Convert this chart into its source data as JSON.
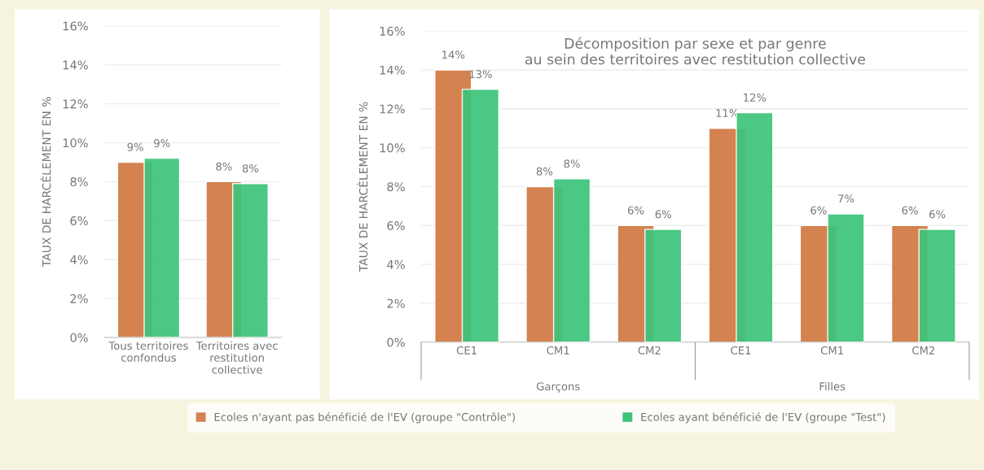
{
  "chart_data": [
    {
      "type": "bar",
      "ylabel": "TAUX DE HARCÈLEMENT EN %",
      "categories": [
        "Tous territoires\nconfondus",
        "Territoires avec\nrestitution\ncollective"
      ],
      "series": [
        {
          "color": "#d4824f",
          "values": [
            9.0,
            8.0
          ],
          "value_labels": [
            "9%",
            "8%"
          ]
        },
        {
          "color": "#3cc47a",
          "values": [
            9.2,
            7.9
          ],
          "value_labels": [
            "9%",
            "8%"
          ]
        }
      ],
      "ylim": [
        0,
        16
      ],
      "yticks": [
        {
          "value": 0,
          "label": "0%"
        },
        {
          "value": 2,
          "label": "2%"
        },
        {
          "value": 4,
          "label": "4%"
        },
        {
          "value": 6,
          "label": "6%"
        },
        {
          "value": 8,
          "label": "8%"
        },
        {
          "value": 10,
          "label": "10%"
        },
        {
          "value": 12,
          "label": "12%"
        },
        {
          "value": 14,
          "label": "14%"
        },
        {
          "value": 16,
          "label": "16%"
        }
      ],
      "grid": "y",
      "legend": false
    },
    {
      "type": "bar",
      "title": "Décomposition par sexe et par genre\nau sein des territoires avec restitution collective",
      "ylabel": "TAUX DE HARCÈLEMENT EN %",
      "categories": [
        "CE1",
        "CM1",
        "CM2",
        "CE1",
        "CM1",
        "CM2"
      ],
      "series": [
        {
          "name": "Ecoles n'ayant pas bénéficié de l'EV (groupe \"Contrôle\")",
          "color": "#d4824f",
          "values": [
            14.0,
            8.0,
            6.0,
            11.0,
            6.0,
            6.0
          ],
          "value_labels": [
            "14%",
            "8%",
            "6%",
            "11%",
            "6%",
            "6%"
          ]
        },
        {
          "name": "Ecoles ayant bénéficié de l'EV (groupe \"Test\")",
          "color": "#3cc47a",
          "values": [
            13.0,
            8.4,
            5.8,
            11.8,
            6.6,
            5.8
          ],
          "value_labels": [
            "13%",
            "8%",
            "6%",
            "12%",
            "7%",
            "6%"
          ]
        }
      ],
      "annotations": [
        "Garçons",
        "Filles"
      ],
      "ylim": [
        0,
        16
      ],
      "yticks": [
        {
          "value": 0,
          "label": "0%"
        },
        {
          "value": 2,
          "label": "2%"
        },
        {
          "value": 4,
          "label": "4%"
        },
        {
          "value": 6,
          "label": "6%"
        },
        {
          "value": 8,
          "label": "8%"
        },
        {
          "value": 10,
          "label": "10%"
        },
        {
          "value": 12,
          "label": "12%"
        },
        {
          "value": 14,
          "label": "14%"
        },
        {
          "value": 16,
          "label": "16%"
        }
      ],
      "grid": "y",
      "legend": "bottom"
    }
  ]
}
